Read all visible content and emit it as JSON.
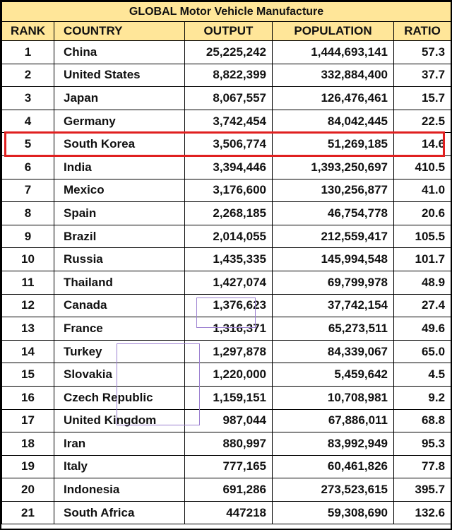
{
  "table": {
    "title": "GLOBAL Motor Vehicle Manufacture",
    "columns": [
      "RANK",
      "COUNTRY",
      "OUTPUT",
      "POPULATION",
      "RATIO"
    ],
    "rows": [
      [
        "1",
        "China",
        "25,225,242",
        "1,444,693,141",
        "57.3"
      ],
      [
        "2",
        "United States",
        "8,822,399",
        "332,884,400",
        "37.7"
      ],
      [
        "3",
        "Japan",
        "8,067,557",
        "126,476,461",
        "15.7"
      ],
      [
        "4",
        "Germany",
        "3,742,454",
        "84,042,445",
        "22.5"
      ],
      [
        "5",
        "South Korea",
        "3,506,774",
        "51,269,185",
        "14.6"
      ],
      [
        "6",
        "India",
        "3,394,446",
        "1,393,250,697",
        "410.5"
      ],
      [
        "7",
        "Mexico",
        "3,176,600",
        "130,256,877",
        "41.0"
      ],
      [
        "8",
        "Spain",
        "2,268,185",
        "46,754,778",
        "20.6"
      ],
      [
        "9",
        "Brazil",
        "2,014,055",
        "212,559,417",
        "105.5"
      ],
      [
        "10",
        "Russia",
        "1,435,335",
        "145,994,548",
        "101.7"
      ],
      [
        "11",
        "Thailand",
        "1,427,074",
        "69,799,978",
        "48.9"
      ],
      [
        "12",
        "Canada",
        "1,376,623",
        "37,742,154",
        "27.4"
      ],
      [
        "13",
        "France",
        "1,316,371",
        "65,273,511",
        "49.6"
      ],
      [
        "14",
        "Turkey",
        "1,297,878",
        "84,339,067",
        "65.0"
      ],
      [
        "15",
        "Slovakia",
        "1,220,000",
        "5,459,642",
        "4.5"
      ],
      [
        "16",
        "Czech Republic",
        "1,159,151",
        "10,708,981",
        "9.2"
      ],
      [
        "17",
        "United Kingdom",
        "987,044",
        "67,886,011",
        "68.8"
      ],
      [
        "18",
        "Iran",
        "880,997",
        "83,992,949",
        "95.3"
      ],
      [
        "19",
        "Italy",
        "777,165",
        "60,461,826",
        "77.8"
      ],
      [
        "20",
        "Indonesia",
        "691,286",
        "273,523,615",
        "395.7"
      ],
      [
        "21",
        "South Africa",
        "447218",
        "59,308,690",
        "132.6"
      ]
    ],
    "highlighted_rank": "5"
  },
  "colors": {
    "header_fill": "#ffe699",
    "highlight_border": "#e02020",
    "artifact_lines": "#9b7fd0"
  }
}
